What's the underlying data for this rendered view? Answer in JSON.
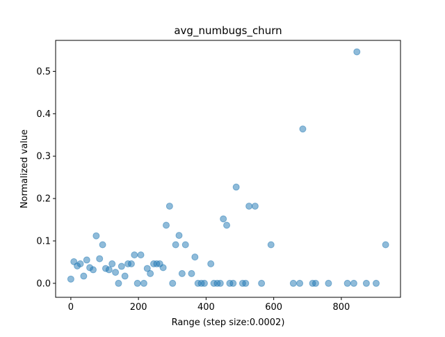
{
  "chart_data": {
    "type": "scatter",
    "title": "avg_numbugs_churn",
    "xlabel": "Range (step size:0.0002)",
    "ylabel": "Normalized value",
    "xlim": [
      -45,
      975
    ],
    "ylim": [
      -0.033,
      0.573
    ],
    "xticks": [
      0,
      200,
      400,
      600,
      800
    ],
    "xtick_labels": [
      "0",
      "200",
      "400",
      "600",
      "800"
    ],
    "yticks": [
      0.0,
      0.1,
      0.2,
      0.3,
      0.4,
      0.5
    ],
    "ytick_labels": [
      "0.0",
      "0.1",
      "0.2",
      "0.3",
      "0.4",
      "0.5"
    ],
    "grid": false,
    "legend": "none",
    "marker_color": "#1f77b4",
    "marker_alpha": 0.5,
    "points": [
      [
        0,
        0.01
      ],
      [
        9,
        0.051
      ],
      [
        19,
        0.041
      ],
      [
        28,
        0.046
      ],
      [
        38,
        0.017
      ],
      [
        47,
        0.055
      ],
      [
        56,
        0.037
      ],
      [
        66,
        0.032
      ],
      [
        75,
        0.112
      ],
      [
        85,
        0.058
      ],
      [
        94,
        0.091
      ],
      [
        103,
        0.035
      ],
      [
        113,
        0.032
      ],
      [
        122,
        0.046
      ],
      [
        132,
        0.026
      ],
      [
        141,
        0.0
      ],
      [
        150,
        0.04
      ],
      [
        160,
        0.017
      ],
      [
        169,
        0.046
      ],
      [
        179,
        0.046
      ],
      [
        188,
        0.067
      ],
      [
        197,
        0.0
      ],
      [
        207,
        0.067
      ],
      [
        216,
        0.0
      ],
      [
        226,
        0.035
      ],
      [
        235,
        0.023
      ],
      [
        245,
        0.046
      ],
      [
        254,
        0.046
      ],
      [
        263,
        0.046
      ],
      [
        273,
        0.037
      ],
      [
        282,
        0.137
      ],
      [
        292,
        0.182
      ],
      [
        301,
        0.0
      ],
      [
        310,
        0.091
      ],
      [
        320,
        0.113
      ],
      [
        329,
        0.023
      ],
      [
        339,
        0.091
      ],
      [
        357,
        0.023
      ],
      [
        367,
        0.062
      ],
      [
        376,
        0.0
      ],
      [
        386,
        0.0
      ],
      [
        395,
        0.0
      ],
      [
        414,
        0.046
      ],
      [
        423,
        0.0
      ],
      [
        433,
        0.0
      ],
      [
        442,
        0.0
      ],
      [
        451,
        0.152
      ],
      [
        461,
        0.137
      ],
      [
        470,
        0.0
      ],
      [
        480,
        0.0
      ],
      [
        489,
        0.227
      ],
      [
        508,
        0.0
      ],
      [
        517,
        0.0
      ],
      [
        527,
        0.182
      ],
      [
        545,
        0.182
      ],
      [
        564,
        0.0
      ],
      [
        592,
        0.091
      ],
      [
        658,
        0.0
      ],
      [
        677,
        0.0
      ],
      [
        686,
        0.364
      ],
      [
        715,
        0.0
      ],
      [
        724,
        0.0
      ],
      [
        762,
        0.0
      ],
      [
        818,
        0.0
      ],
      [
        837,
        0.0
      ],
      [
        846,
        0.546
      ],
      [
        874,
        0.0
      ],
      [
        903,
        0.0
      ],
      [
        931,
        0.091
      ]
    ]
  }
}
